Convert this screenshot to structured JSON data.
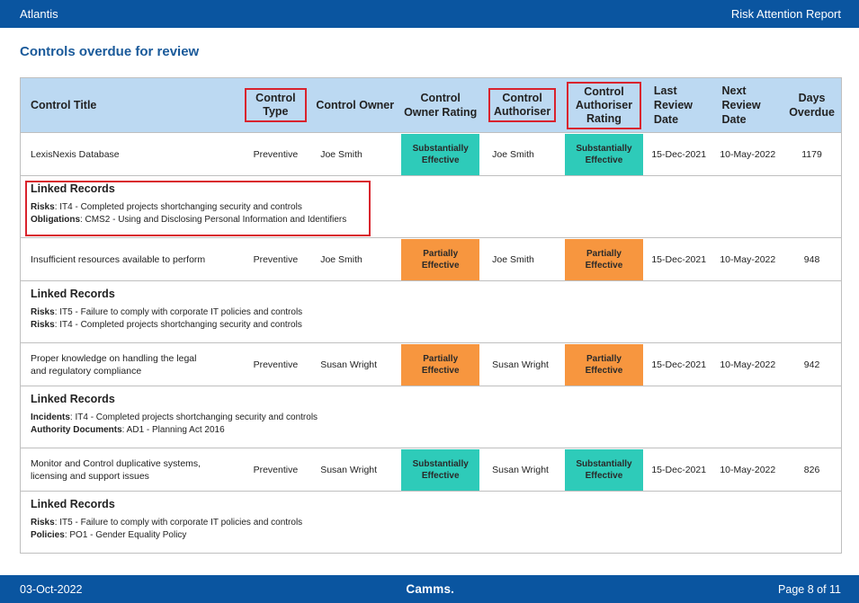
{
  "header": {
    "app_name": "Atlantis",
    "report_name": "Risk Attention Report"
  },
  "page_title": "Controls overdue for review",
  "table": {
    "columns": {
      "control_title": "Control Title",
      "control_type": "Control Type",
      "control_owner": "Control Owner",
      "owner_rating_1": "Control",
      "owner_rating_2": "Owner Rating",
      "authoriser_1": "Control",
      "authoriser_2": "Authoriser",
      "auth_rating_1": "Control",
      "auth_rating_2": "Authoriser Rating",
      "last_review_1": "Last",
      "last_review_2": "Review",
      "last_review_3": "Date",
      "next_review_1": "Next",
      "next_review_2": "Review",
      "next_review_3": "Date",
      "days_1": "Days",
      "days_2": "Overdue"
    },
    "rows": [
      {
        "title_1": "LexisNexis Database",
        "title_2": "",
        "type": "Preventive",
        "owner": "Joe Smith",
        "owner_rating_1": "Substantially",
        "owner_rating_2": "Effective",
        "authoriser": "Joe Smith",
        "auth_rating_1": "Substantially",
        "auth_rating_2": "Effective",
        "last_review": "15-Dec-2021",
        "next_review": "10-May-2022",
        "days_overdue": "1179",
        "linked_heading": "Linked Records",
        "linked": [
          {
            "label": "Risks",
            "text": ": IT4 - Completed projects shortchanging security and controls"
          },
          {
            "label": "Obligations",
            "text": ": CMS2 - Using and Disclosing Personal Information and Identifiers"
          }
        ]
      },
      {
        "title_1": "Insufficient resources available to perform",
        "title_2": "",
        "type": "Preventive",
        "owner": "Joe Smith",
        "owner_rating_1": "Partially",
        "owner_rating_2": "Effective",
        "authoriser": "Joe Smith",
        "auth_rating_1": "Partially",
        "auth_rating_2": "Effective",
        "last_review": "15-Dec-2021",
        "next_review": "10-May-2022",
        "days_overdue": "948",
        "linked_heading": "Linked Records",
        "linked": [
          {
            "label": "Risks",
            "text": ": IT5 - Failure to comply with corporate IT policies and controls"
          },
          {
            "label": "Risks",
            "text": ": IT4 - Completed projects shortchanging security and controls"
          }
        ]
      },
      {
        "title_1": "Proper knowledge on handling the legal",
        "title_2": "and regulatory compliance",
        "type": "Preventive",
        "owner": "Susan Wright",
        "owner_rating_1": "Partially",
        "owner_rating_2": "Effective",
        "authoriser": "Susan Wright",
        "auth_rating_1": "Partially",
        "auth_rating_2": "Effective",
        "last_review": "15-Dec-2021",
        "next_review": "10-May-2022",
        "days_overdue": "942",
        "linked_heading": "Linked Records",
        "linked": [
          {
            "label": "Incidents",
            "text": ": IT4 - Completed projects shortchanging security and controls"
          },
          {
            "label": "Authority Documents",
            "text": ": AD1 - Planning Act 2016"
          }
        ]
      },
      {
        "title_1": "Monitor and Control duplicative systems,",
        "title_2": "licensing and support issues",
        "type": "Preventive",
        "owner": "Susan Wright",
        "owner_rating_1": "Substantially",
        "owner_rating_2": "Effective",
        "authoriser": "Susan Wright",
        "auth_rating_1": "Substantially",
        "auth_rating_2": "Effective",
        "last_review": "15-Dec-2021",
        "next_review": "10-May-2022",
        "days_overdue": "826",
        "linked_heading": "Linked Records",
        "linked": [
          {
            "label": "Risks",
            "text": ": IT5 - Failure to comply with corporate IT policies and controls"
          },
          {
            "label": "Policies",
            "text": ": PO1 - Gender Equality Policy"
          }
        ]
      }
    ]
  },
  "colors": {
    "header_bar": "#0a55a0",
    "table_header": "#bcd9f2",
    "substantially_effective": "#2ecbb9",
    "partially_effective": "#f7963f",
    "highlight_border": "#d9232d"
  },
  "footer": {
    "date": "03-Oct-2022",
    "brand": "Camms.",
    "page_label": "Page 8 of 11"
  }
}
